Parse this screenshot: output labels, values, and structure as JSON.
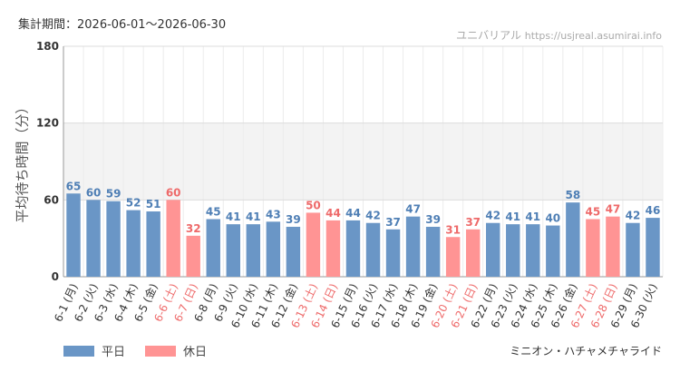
{
  "header": {
    "period": "集計期間：2026-06-01～2026-06-30",
    "brand_name": "ユニバリアル",
    "brand_url": "https://usjreal.asumirai.info"
  },
  "footer": {
    "attraction": "ミニオン・ハチャメチャライド"
  },
  "colors": {
    "weekday": "#6a96c6",
    "holiday": "#ff9494",
    "holiday_text": "#ee6a6a",
    "weekday_text": "#4f7fb5",
    "band": "#f3f3f3"
  },
  "chart_data": {
    "type": "bar",
    "ylabel": "平均待ち時間（分）",
    "ylim": [
      0,
      180
    ],
    "yticks": [
      0,
      60,
      120,
      180
    ],
    "shaded_band": [
      60,
      120
    ],
    "legend": {
      "position": "bottom-left",
      "weekday": "平日",
      "holiday": "休日"
    },
    "categories": [
      "6-1 (月)",
      "6-2 (火)",
      "6-3 (水)",
      "6-4 (木)",
      "6-5 (金)",
      "6-6 (土)",
      "6-7 (日)",
      "6-8 (月)",
      "6-9 (火)",
      "6-10 (水)",
      "6-11 (木)",
      "6-12 (金)",
      "6-13 (土)",
      "6-14 (日)",
      "6-15 (月)",
      "6-16 (火)",
      "6-17 (水)",
      "6-18 (木)",
      "6-19 (金)",
      "6-20 (土)",
      "6-21 (日)",
      "6-22 (月)",
      "6-23 (火)",
      "6-24 (水)",
      "6-25 (木)",
      "6-26 (金)",
      "6-27 (土)",
      "6-28 (日)",
      "6-29 (月)",
      "6-30 (火)"
    ],
    "values": [
      65,
      60,
      59,
      52,
      51,
      60,
      32,
      45,
      41,
      41,
      43,
      39,
      50,
      44,
      44,
      42,
      37,
      47,
      39,
      31,
      37,
      42,
      41,
      41,
      40,
      58,
      45,
      47,
      42,
      46
    ],
    "holiday": [
      false,
      false,
      false,
      false,
      false,
      true,
      true,
      false,
      false,
      false,
      false,
      false,
      true,
      true,
      false,
      false,
      false,
      false,
      false,
      true,
      true,
      false,
      false,
      false,
      false,
      false,
      true,
      true,
      false,
      false
    ]
  }
}
